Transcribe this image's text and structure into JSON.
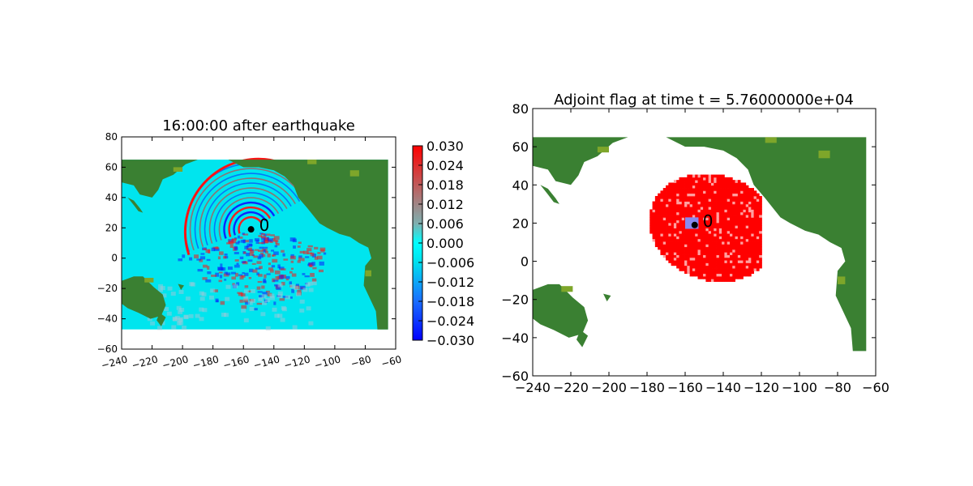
{
  "colors": {
    "ocean": "#00e5ee",
    "land": "#3a8032",
    "land_light": "#7ea62a",
    "positive": "#ff1414",
    "negative": "#0a1eff",
    "flag": "#ff0000",
    "flag_light": "#ffa0a0",
    "source_box": "#8888ee",
    "marker": "#000000"
  },
  "chart_data": [
    {
      "type": "heatmap",
      "title": "16:00:00 after earthquake",
      "xlim": [
        -240,
        -60
      ],
      "ylim": [
        -60,
        80
      ],
      "xticks": [
        -240,
        -220,
        -200,
        -180,
        -160,
        -140,
        -120,
        -100,
        -80,
        -60
      ],
      "yticks": [
        -60,
        -40,
        -20,
        0,
        20,
        40,
        60,
        80
      ],
      "xlabel": "",
      "ylabel": "",
      "data_extent": {
        "x": [
          -240,
          -65
        ],
        "y": [
          -47,
          65
        ]
      },
      "colorbar": {
        "range": [
          -0.03,
          0.03
        ],
        "ticks": [
          "0.030",
          "0.024",
          "0.018",
          "0.012",
          "0.006",
          "0.000",
          "−0.006",
          "−0.012",
          "−0.018",
          "−0.024",
          "−0.030"
        ]
      },
      "gauge": {
        "label": "0",
        "x": -155,
        "y": 19
      }
    },
    {
      "type": "heatmap",
      "title": "Adjoint flag at time t = 5.76000000e+04",
      "xlim": [
        -240,
        -60
      ],
      "ylim": [
        -60,
        80
      ],
      "xticks": [
        -240,
        -220,
        -200,
        -180,
        -160,
        -140,
        -120,
        -100,
        -80,
        -60
      ],
      "yticks": [
        -60,
        -40,
        -20,
        0,
        20,
        40,
        60,
        80
      ],
      "xlabel": "",
      "ylabel": "",
      "data_extent": {
        "x": [
          -240,
          -65
        ],
        "y": [
          -47,
          65
        ]
      },
      "flagged_region": {
        "x": [
          -180,
          -120
        ],
        "y": [
          -12,
          46
        ]
      },
      "source_box": {
        "x": [
          -160,
          -153
        ],
        "y": [
          17,
          23
        ]
      },
      "gauge": {
        "label": "0",
        "x": -155,
        "y": 19
      }
    }
  ]
}
